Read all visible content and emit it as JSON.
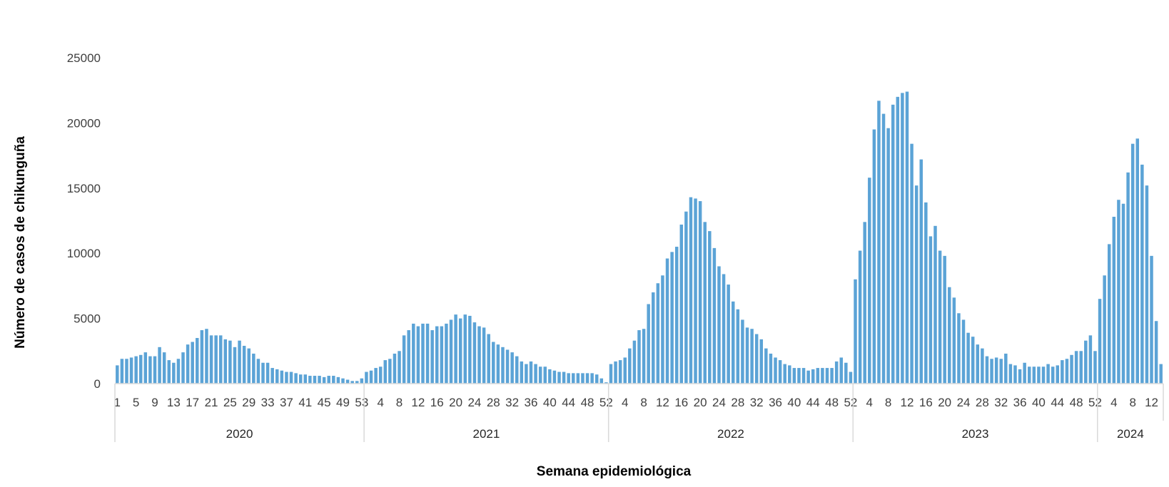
{
  "chart_data": {
    "type": "bar",
    "title": "",
    "xlabel": "Semana epidemiológica",
    "ylabel": "Número de casos de chikunguña",
    "ylim": [
      0,
      25000
    ],
    "yticks": [
      "0",
      "5000",
      "10000",
      "15000",
      "20000",
      "25000"
    ],
    "grid": false,
    "legend": "none",
    "bar_color": "#5ba3d6",
    "axis_color": "#d9d9d9",
    "years": [
      {
        "label": "2020",
        "week_ticks": [
          "1",
          "5",
          "9",
          "13",
          "17",
          "21",
          "25",
          "29",
          "33",
          "37",
          "41",
          "45",
          "49",
          "53"
        ],
        "values": [
          1400,
          1900,
          1900,
          2000,
          2100,
          2200,
          2400,
          2100,
          2100,
          2800,
          2400,
          1800,
          1600,
          1900,
          2400,
          3000,
          3200,
          3500,
          4100,
          4200,
          3700,
          3700,
          3700,
          3400,
          3300,
          2800,
          3300,
          2900,
          2700,
          2300,
          1900,
          1600,
          1600,
          1200,
          1100,
          1000,
          900,
          900,
          800,
          700,
          700,
          600,
          600,
          600,
          500,
          600,
          600,
          500,
          400,
          300,
          200,
          200,
          400
        ]
      },
      {
        "label": "2021",
        "week_ticks": [
          "4",
          "8",
          "12",
          "16",
          "20",
          "24",
          "28",
          "32",
          "36",
          "40",
          "44",
          "48",
          "52"
        ],
        "values": [
          900,
          1000,
          1200,
          1300,
          1800,
          1900,
          2300,
          2500,
          3700,
          4100,
          4600,
          4400,
          4600,
          4600,
          4100,
          4400,
          4400,
          4600,
          4900,
          5300,
          5000,
          5300,
          5200,
          4700,
          4400,
          4300,
          3800,
          3200,
          3000,
          2800,
          2600,
          2400,
          2100,
          1700,
          1500,
          1700,
          1500,
          1300,
          1300,
          1100,
          1000,
          900,
          900,
          800,
          800,
          800,
          800,
          800,
          800,
          700,
          400,
          100
        ]
      },
      {
        "label": "2022",
        "week_ticks": [
          "4",
          "8",
          "12",
          "16",
          "20",
          "24",
          "28",
          "32",
          "36",
          "40",
          "44",
          "48",
          "52"
        ],
        "values": [
          1500,
          1700,
          1800,
          2000,
          2700,
          3300,
          4100,
          4200,
          6100,
          7000,
          7700,
          8300,
          9600,
          10100,
          10500,
          12200,
          13200,
          14300,
          14200,
          14000,
          12400,
          11700,
          10400,
          9000,
          8400,
          7600,
          6300,
          5700,
          4900,
          4300,
          4200,
          3800,
          3400,
          2700,
          2300,
          2000,
          1800,
          1500,
          1400,
          1200,
          1200,
          1200,
          1000,
          1100,
          1200,
          1200,
          1200,
          1200,
          1700,
          2000,
          1600,
          900
        ]
      },
      {
        "label": "2023",
        "week_ticks": [
          "4",
          "8",
          "12",
          "16",
          "20",
          "24",
          "28",
          "32",
          "36",
          "40",
          "44",
          "48",
          "52"
        ],
        "values": [
          8000,
          10200,
          12400,
          15800,
          19500,
          21700,
          20700,
          19600,
          21400,
          22000,
          22300,
          22400,
          18400,
          15200,
          17200,
          13900,
          11300,
          12100,
          10200,
          9800,
          7400,
          6600,
          5400,
          4900,
          3900,
          3600,
          3000,
          2700,
          2100,
          1900,
          2000,
          1900,
          2300,
          1500,
          1400,
          1100,
          1600,
          1300,
          1300,
          1300,
          1300,
          1500,
          1300,
          1400,
          1800,
          1900,
          2200,
          2500,
          2500,
          3300,
          3700,
          2500
        ]
      },
      {
        "label": "2024",
        "week_ticks": [
          "4",
          "8",
          "12"
        ],
        "values": [
          6500,
          8300,
          10700,
          12800,
          14100,
          13800,
          16200,
          18400,
          18800,
          16800,
          15200,
          9800,
          4800,
          1500
        ]
      }
    ]
  }
}
